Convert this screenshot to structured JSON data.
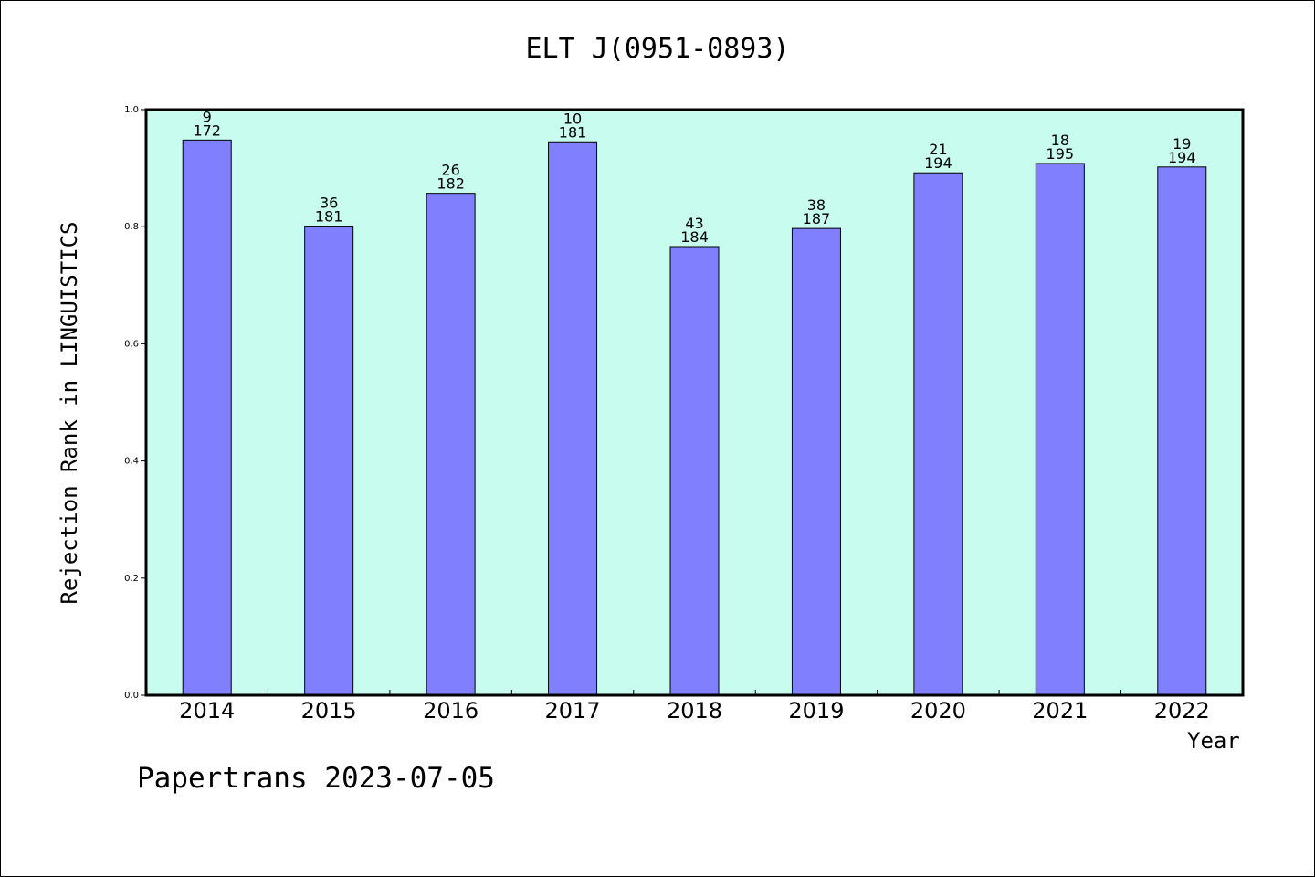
{
  "chart_data": {
    "type": "bar",
    "title": "ELT J(0951-0893)",
    "xlabel": "Year",
    "ylabel": "Rejection Rank in LINGUISTICS",
    "categories": [
      "2014",
      "2015",
      "2016",
      "2017",
      "2018",
      "2019",
      "2020",
      "2021",
      "2022"
    ],
    "values": [
      0.948,
      0.801,
      0.857,
      0.945,
      0.766,
      0.797,
      0.892,
      0.908,
      0.902
    ],
    "bar_labels_top": [
      "9",
      "36",
      "26",
      "10",
      "43",
      "38",
      "21",
      "18",
      "19"
    ],
    "bar_labels_bottom": [
      "172",
      "181",
      "182",
      "181",
      "184",
      "187",
      "194",
      "195",
      "194"
    ],
    "ylim": [
      0,
      1.0
    ],
    "yticks": [
      "0.0",
      "0.2",
      "0.4",
      "0.6",
      "0.8",
      "1.0"
    ],
    "grid": false,
    "colors": {
      "bar": "#8080ff",
      "plot_background": "#c8fcee",
      "axis": "#000000"
    }
  },
  "footer": "Papertrans 2023-07-05"
}
